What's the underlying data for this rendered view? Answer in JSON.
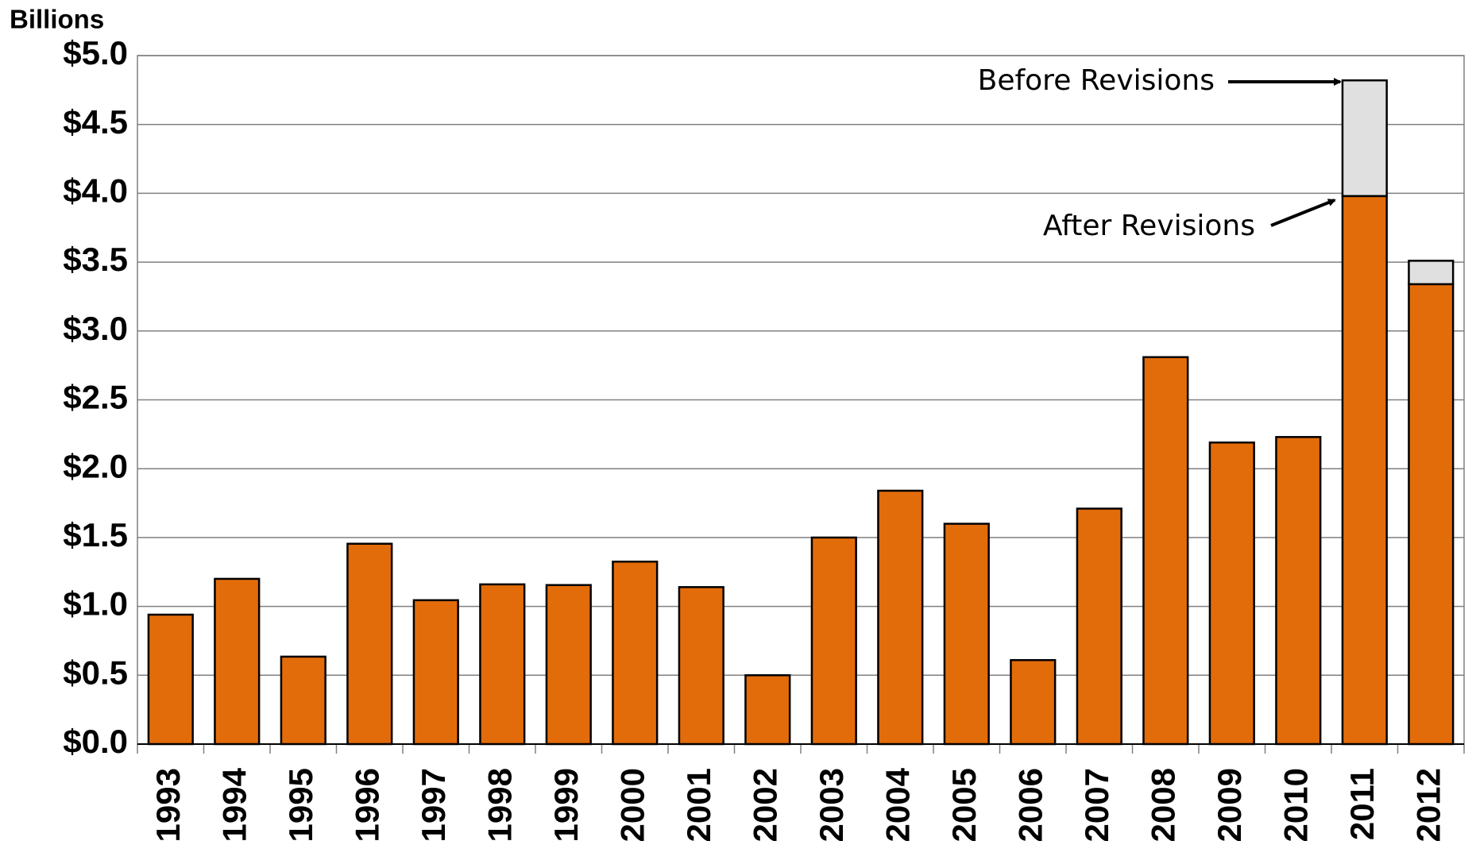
{
  "chart_data": {
    "type": "stacked_bar",
    "y_axis_label": "Billions",
    "categories": [
      "1993",
      "1994",
      "1995",
      "1996",
      "1997",
      "1998",
      "1999",
      "2000",
      "2001",
      "2002",
      "2003",
      "2004",
      "2005",
      "2006",
      "2007",
      "2008",
      "2009",
      "2010",
      "2011",
      "2012"
    ],
    "series": [
      {
        "color": "#e36c0a",
        "values": [
          0.94,
          1.2,
          0.635,
          1.455,
          1.045,
          1.16,
          1.155,
          1.325,
          1.14,
          0.5,
          1.5,
          1.84,
          1.6,
          0.61,
          1.71,
          2.81,
          2.19,
          2.23,
          3.98,
          3.34
        ]
      },
      {
        "color": "#e0e0e0",
        "values": [
          null,
          null,
          null,
          null,
          null,
          null,
          null,
          null,
          null,
          null,
          null,
          null,
          null,
          null,
          null,
          null,
          null,
          null,
          0.84,
          0.17
        ]
      }
    ],
    "annotations": [
      "Before Revisions",
      "After Revisions"
    ],
    "ylim": [
      0,
      5
    ],
    "yticks": [
      {
        "value": 0,
        "label": "$0.0"
      },
      {
        "value": 0.5,
        "label": "$0.5"
      },
      {
        "value": 1,
        "label": "$1.0"
      },
      {
        "value": 1.5,
        "label": "$1.5"
      },
      {
        "value": 2,
        "label": "$2.0"
      },
      {
        "value": 2.5,
        "label": "$2.5"
      },
      {
        "value": 3,
        "label": "$3.0"
      },
      {
        "value": 3.5,
        "label": "$3.5"
      },
      {
        "value": 4,
        "label": "$4.0"
      },
      {
        "value": 4.5,
        "label": "$4.5"
      },
      {
        "value": 5,
        "label": "$5.0"
      }
    ],
    "grid": true
  }
}
